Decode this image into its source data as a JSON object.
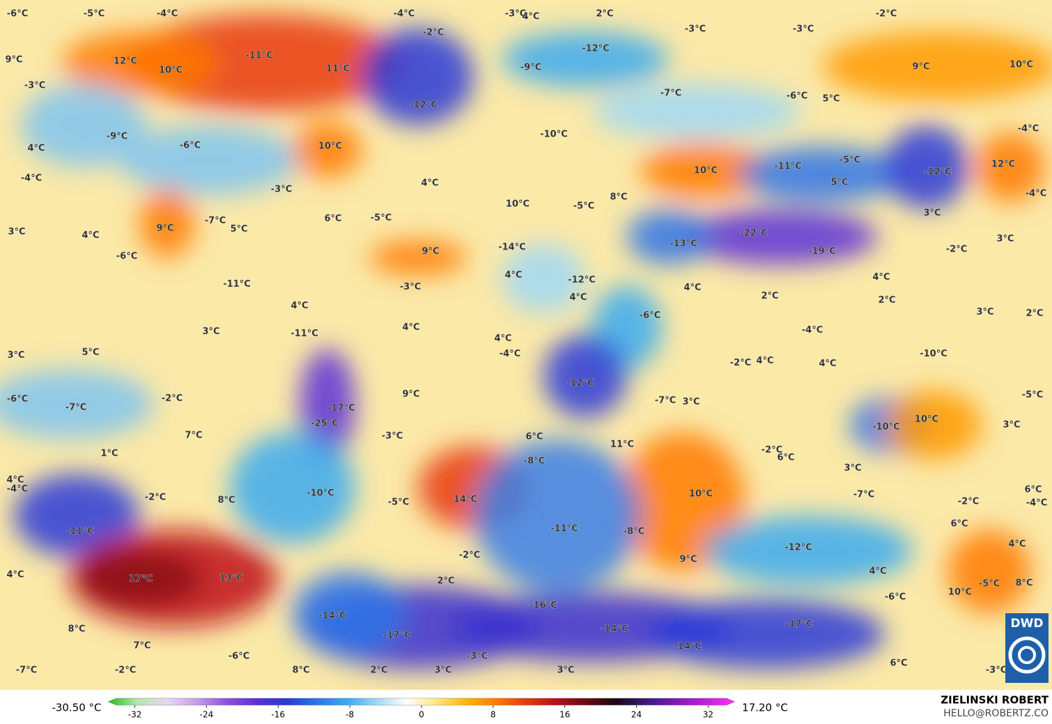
{
  "map": {
    "labels": [
      "-6°C",
      "-5°C",
      "-4°C",
      "-4°C",
      "-3°C",
      "4°C",
      "2°C",
      "-2°C",
      "9°C",
      "12°C",
      "-11°C",
      "10°C",
      "11°C",
      "-2°C",
      "-12°C",
      "-3°C",
      "-3°C",
      "-9°C",
      "9°C",
      "10°C",
      "-3°C",
      "-12°C",
      "-7°C",
      "-6°C",
      "5°C",
      "-9°C",
      "-6°C",
      "4°C",
      "10°C",
      "-10°C",
      "-4°C",
      "-4°C",
      "-3°C",
      "4°C",
      "10°C",
      "-11°C",
      "-5°C",
      "-12°C",
      "12°C",
      "5°C",
      "-4°C",
      "10°C",
      "-5°C",
      "8°C",
      "3°C",
      "4°C",
      "9°C",
      "-7°C",
      "5°C",
      "6°C",
      "-5°C",
      "-14°C",
      "-13°C",
      "-22°C",
      "-19°C",
      "3°C",
      "-2°C",
      "3°C",
      "-6°C",
      "9°C",
      "-11°C",
      "-3°C",
      "4°C",
      "-12°C",
      "4°C",
      "4°C",
      "2°C",
      "2°C",
      "4°C",
      "4°C",
      "-6°C",
      "3°C",
      "2°C",
      "3°C",
      "4°C",
      "-11°C",
      "-4°C",
      "3°C",
      "5°C",
      "4°C",
      "-4°C",
      "-2°C",
      "4°C",
      "4°C",
      "-10°C",
      "-12°C",
      "-6°C",
      "-7°C",
      "-2°C",
      "9°C",
      "-17°C",
      "-7°C",
      "3°C",
      "-5°C",
      "-25°C",
      "7°C",
      "-3°C",
      "6°C",
      "11°C",
      "-10°C",
      "10°C",
      "3°C",
      "1°C",
      "-2°C",
      "6°C",
      "-8°C",
      "4°C",
      "-4°C",
      "3°C",
      "6°C",
      "-4°C",
      "-2°C",
      "8°C",
      "-10°C",
      "-5°C",
      "14°C",
      "10°C",
      "-7°C",
      "-2°C",
      "-11°C",
      "-11°C",
      "-8°C",
      "6°C",
      "-2°C",
      "9°C",
      "-12°C",
      "4°C",
      "4°C",
      "17°C",
      "13°C",
      "2°C",
      "4°C",
      "-5°C",
      "8°C",
      "10°C",
      "-6°C",
      "-14°C",
      "-16°C",
      "-14°C",
      "-17°C",
      "8°C",
      "-17°C",
      "7°C",
      "-14°C",
      "-6°C",
      "-3°C",
      "6°C",
      "-7°C",
      "-2°C",
      "8°C",
      "2°C",
      "3°C",
      "3°C",
      "-3°C"
    ],
    "colorbar": {
      "min_label": "-30.50 °C",
      "max_label": "17.20 °C",
      "range": [
        -35,
        35
      ],
      "ticks": [
        -32,
        -24,
        -16,
        -8,
        0,
        8,
        16,
        24,
        32
      ],
      "colors": [
        "#1fbf1f",
        "#b8e6b0",
        "#e6d8f2",
        "#c59be8",
        "#8d4fe0",
        "#5a2fd8",
        "#2a39d8",
        "#2f74e8",
        "#3aaaf0",
        "#9fd8f5",
        "#ffffff",
        "#ffe680",
        "#ffb800",
        "#ff7a00",
        "#e8380c",
        "#b8101a",
        "#6b0a14",
        "#1a0810",
        "#3a1a7a",
        "#7a1ab8",
        "#c020d8",
        "#ff30f0"
      ]
    },
    "credit": {
      "name": "ZIELINSKI ROBERT",
      "email": "HELLO@ROBERTZ.CO",
      "logo": "DWD"
    }
  }
}
